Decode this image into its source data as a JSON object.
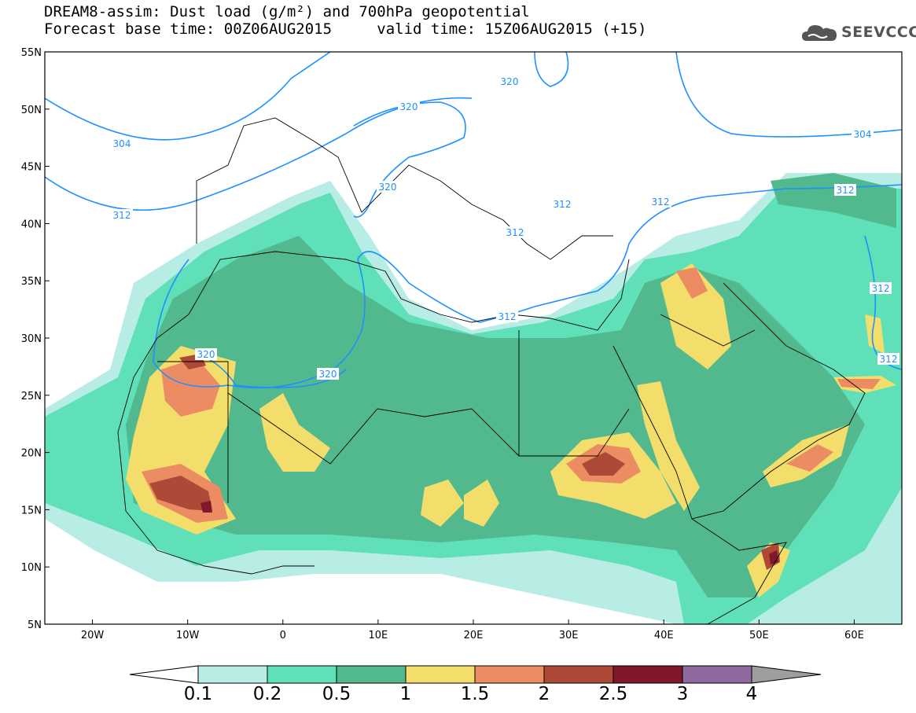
{
  "title": {
    "line1": "DREAM8-assim: Dust load (g/m²) and 700hPa geopotential",
    "line2_left": "Forecast base time: 00Z06AUG2015",
    "line2_right": "valid time: 15Z06AUG2015 (+15)"
  },
  "logo": {
    "text": "SEEVCCC",
    "icon": "cloud-logo-icon",
    "color": "#555555"
  },
  "map": {
    "lon_range": [
      -25,
      65
    ],
    "lat_range": [
      5,
      55
    ],
    "lat_labels": [
      "55N",
      "50N",
      "45N",
      "40N",
      "35N",
      "30N",
      "25N",
      "20N",
      "15N",
      "10N",
      "5N"
    ],
    "lon_labels": [
      "20W",
      "10W",
      "0",
      "10E",
      "20E",
      "30E",
      "40E",
      "50E",
      "60E"
    ],
    "contour_color": "#1e90ff",
    "contour_labels": [
      "320",
      "320",
      "304",
      "320",
      "312",
      "312",
      "312",
      "312",
      "312",
      "320",
      "320",
      "312",
      "312",
      "304",
      "312"
    ]
  },
  "legend": {
    "colors": [
      "#ffffff",
      "#b8ede6",
      "#5fe0b8",
      "#52b98e",
      "#f3de6b",
      "#eb8c62",
      "#ae4938",
      "#80172a",
      "#8e6aa0",
      "#9e9e9e"
    ],
    "labels": [
      "0.1",
      "0.2",
      "0.5",
      "1",
      "1.5",
      "2",
      "2.5",
      "3",
      "4"
    ]
  }
}
